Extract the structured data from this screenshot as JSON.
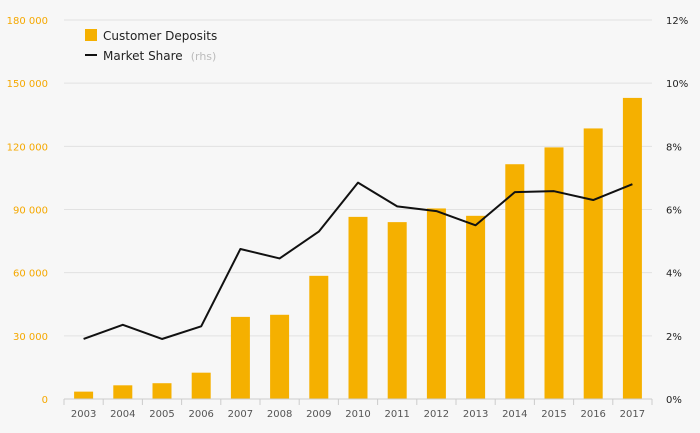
{
  "chart_data": {
    "type": "bar",
    "categories": [
      "2003",
      "2004",
      "2005",
      "2006",
      "2007",
      "2008",
      "2009",
      "2010",
      "2011",
      "2012",
      "2013",
      "2014",
      "2015",
      "2016",
      "2017"
    ],
    "series": [
      {
        "name": "Customer Deposits",
        "type": "bar",
        "axis": "left",
        "color": "#f5b000",
        "values": [
          3500,
          6500,
          7500,
          12500,
          39000,
          40000,
          58500,
          86500,
          84000,
          90500,
          87000,
          111500,
          119500,
          128500,
          143000
        ]
      },
      {
        "name": "Market Share",
        "name_suffix": "(rhs)",
        "type": "line",
        "axis": "right",
        "color": "#111111",
        "values": [
          1.9,
          2.35,
          1.9,
          2.3,
          4.75,
          4.45,
          5.3,
          6.85,
          6.1,
          5.95,
          5.5,
          6.55,
          6.58,
          6.3,
          6.8
        ]
      }
    ],
    "y_left": {
      "ylim": [
        0,
        180000
      ],
      "tick_values": [
        0,
        30000,
        60000,
        90000,
        120000,
        150000,
        180000
      ],
      "tick_labels": [
        "0",
        "30 000",
        "60 000",
        "90 000",
        "120 000",
        "150 000",
        "180 000"
      ],
      "label_color": "#f5a800"
    },
    "y_right": {
      "ylim": [
        0,
        12
      ],
      "tick_values": [
        0,
        2,
        4,
        6,
        8,
        10,
        12
      ],
      "tick_labels": [
        "0%",
        "2%",
        "4%",
        "6%",
        "8%",
        "10%",
        "12%"
      ]
    },
    "grid": true,
    "legend_placement": "top-left"
  }
}
